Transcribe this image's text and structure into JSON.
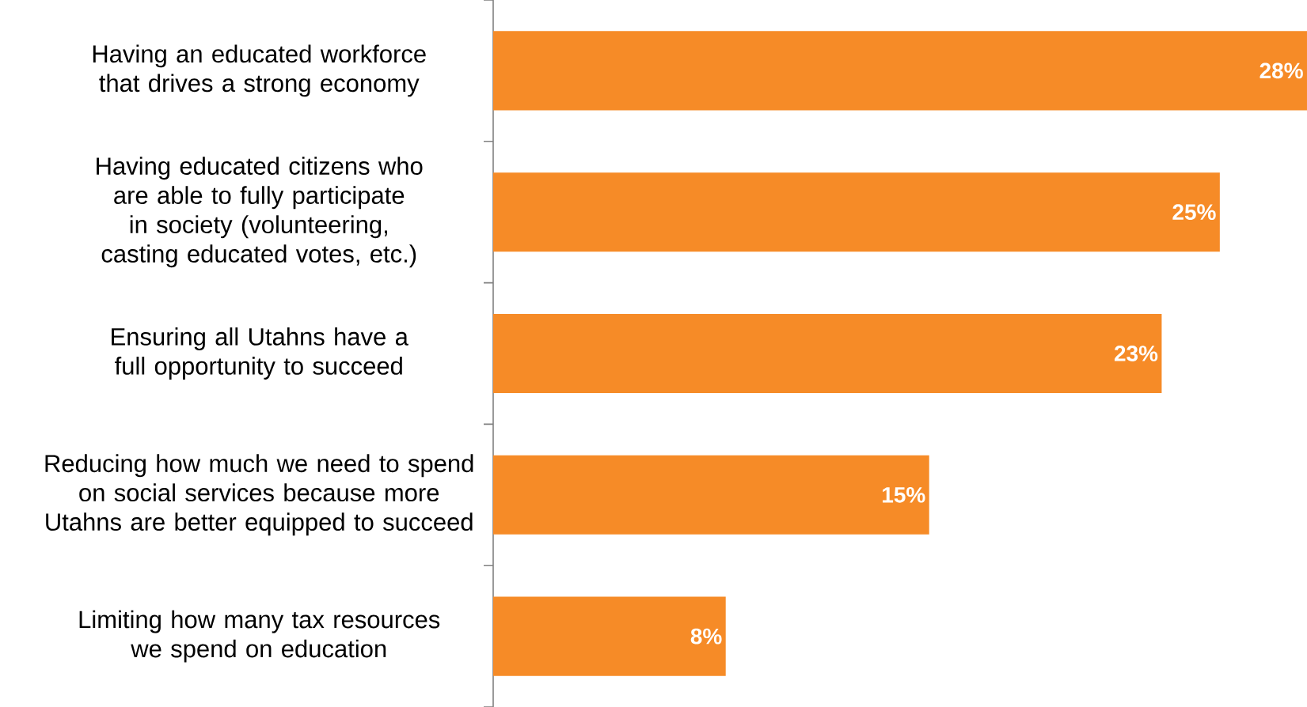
{
  "chart_data": {
    "type": "bar",
    "orientation": "horizontal",
    "categories": [
      "Having an educated workforce that drives a strong economy",
      "Having educated citizens who are able to fully participate in society (volunteering, casting educated votes, etc.)",
      "Ensuring all Utahns have a full opportunity to succeed",
      "Reducing how much we need to spend on social services because more Utahns are better equipped to succeed",
      "Limiting how many tax resources we spend on education"
    ],
    "values": [
      28,
      25,
      23,
      15,
      8
    ],
    "value_labels": [
      "28%",
      "25%",
      "23%",
      "15%",
      "8%"
    ],
    "color": "#f68b27"
  }
}
